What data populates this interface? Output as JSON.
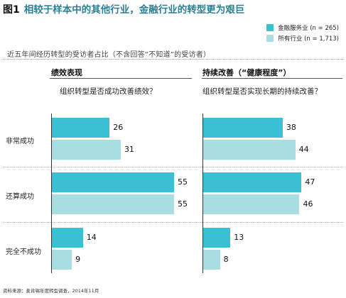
{
  "header": {
    "figure_number": "图1",
    "title": "相较于样本中的其他行业，金融行业的转型更为艰巨"
  },
  "legend": [
    {
      "label": "金融服务业 (n = 265)",
      "color": "#3bbfd3"
    },
    {
      "label": "所有行业 (n = 1,713)",
      "color": "#a8dde2"
    }
  ],
  "subtitle": "近五年间经历转型的受访者占比（不含回答“不知道”的受访者）",
  "chart_data": {
    "type": "bar",
    "orientation": "horizontal",
    "unit": "%",
    "categories": [
      "非常成功",
      "还算成功",
      "完全不成功"
    ],
    "panels": [
      {
        "heading": "绩效表现",
        "question": "组织转型是否成功改善绩效？",
        "series": [
          {
            "name": "金融服务业 (n = 265)",
            "values": [
              26,
              55,
              14
            ],
            "color": "#3bbfd3"
          },
          {
            "name": "所有行业 (n = 1,713)",
            "values": [
              31,
              55,
              9
            ],
            "color": "#a8dde2"
          }
        ]
      },
      {
        "heading": "持续改善（“健康程度”）",
        "question": "组织转型是否实现长期的持续改善？",
        "series": [
          {
            "name": "金融服务业 (n = 265)",
            "values": [
              38,
              47,
              13
            ],
            "color": "#3bbfd3"
          },
          {
            "name": "所有行业 (n = 1,713)",
            "values": [
              44,
              46,
              8
            ],
            "color": "#a8dde2"
          }
        ]
      }
    ],
    "xlim": [
      0,
      55
    ],
    "grid": false,
    "legend_position": "top-right"
  },
  "source": "资料来源：麦肯锡年度转型调查，2014年11月"
}
